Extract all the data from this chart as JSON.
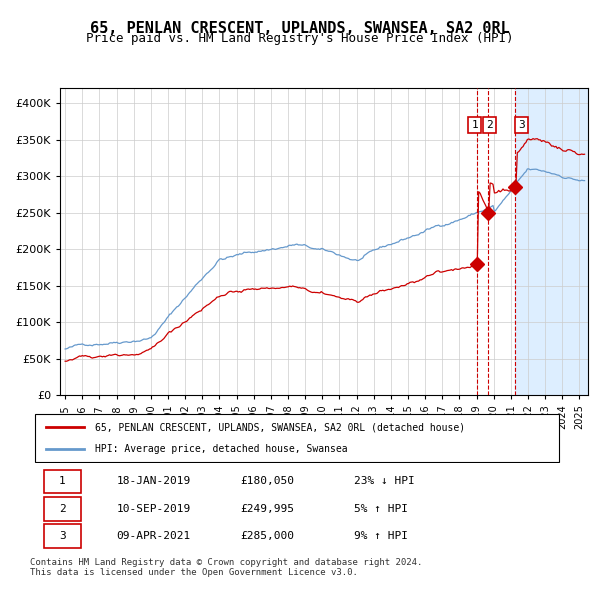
{
  "title": "65, PENLAN CRESCENT, UPLANDS, SWANSEA, SA2 0RL",
  "subtitle": "Price paid vs. HM Land Registry's House Price Index (HPI)",
  "xlabel": "",
  "ylabel": "",
  "xlim_start": 1995.0,
  "xlim_end": 2025.5,
  "ylim": [
    0,
    420000
  ],
  "yticks": [
    0,
    50000,
    100000,
    150000,
    200000,
    250000,
    300000,
    350000,
    400000
  ],
  "ytick_labels": [
    "£0",
    "£50K",
    "£100K",
    "£150K",
    "£200K",
    "£250K",
    "£300K",
    "£350K",
    "£400K"
  ],
  "xtick_years": [
    1995,
    1996,
    1997,
    1998,
    1999,
    2000,
    2001,
    2002,
    2003,
    2004,
    2005,
    2006,
    2007,
    2008,
    2009,
    2010,
    2011,
    2012,
    2013,
    2014,
    2015,
    2016,
    2017,
    2018,
    2019,
    2020,
    2021,
    2022,
    2023,
    2024,
    2025
  ],
  "sale_dates": [
    2019.04,
    2019.69,
    2021.27
  ],
  "sale_prices": [
    180050,
    249995,
    285000
  ],
  "sale_labels": [
    "1",
    "2",
    "3"
  ],
  "sale_info": [
    [
      "1",
      "18-JAN-2019",
      "£180,050",
      "23% ↓ HPI"
    ],
    [
      "2",
      "10-SEP-2019",
      "£249,995",
      "5% ↑ HPI"
    ],
    [
      "3",
      "09-APR-2021",
      "£285,000",
      "9% ↑ HPI"
    ]
  ],
  "legend_house_label": "65, PENLAN CRESCENT, UPLANDS, SWANSEA, SA2 0RL (detached house)",
  "legend_hpi_label": "HPI: Average price, detached house, Swansea",
  "house_line_color": "#cc0000",
  "hpi_line_color": "#6699cc",
  "shade_color": "#ddeeff",
  "dashed_line_color": "#cc0000",
  "marker_color": "#cc0000",
  "footnote": "Contains HM Land Registry data © Crown copyright and database right 2024.\nThis data is licensed under the Open Government Licence v3.0.",
  "background_plot": "#ffffff",
  "grid_color": "#cccccc"
}
